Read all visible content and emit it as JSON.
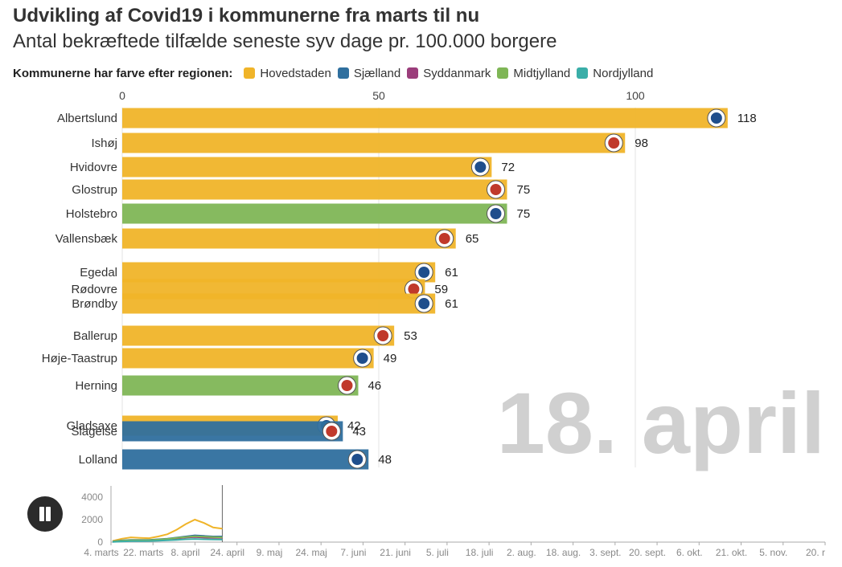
{
  "header": {
    "title": "Udvikling af Covid19 i kommunerne fra marts til nu",
    "subtitle": "Antal bekræftede tilfælde seneste syv dage pr. 100.000 borgere"
  },
  "legend": {
    "title": "Kommunerne har farve efter regionen:",
    "items": [
      {
        "label": "Hovedstaden",
        "color": "#f0b429"
      },
      {
        "label": "Sjælland",
        "color": "#2f6f9e"
      },
      {
        "label": "Syddanmark",
        "color": "#9b3d7b"
      },
      {
        "label": "Midtjylland",
        "color": "#7fb656"
      },
      {
        "label": "Nordjylland",
        "color": "#3aaea8"
      }
    ]
  },
  "controls": {
    "pause_icon": "pause-icon"
  },
  "chart_data": [
    {
      "type": "bar",
      "orientation": "horizontal",
      "date_label": "18. april",
      "xlim": [
        0,
        120
      ],
      "xticks": [
        "0",
        "50",
        "100"
      ],
      "grid": true,
      "categories": [
        "Albertslund",
        "Ishøj",
        "Hvidovre",
        "Glostrup",
        "Holstebro",
        "Vallensbæk",
        "Egedal",
        "Rødovre",
        "Brøndby",
        "Ballerup",
        "Høje-Taastrup",
        "Herning",
        "Gladsaxe",
        "Slagelse",
        "Lolland"
      ],
      "values": [
        118,
        98,
        72,
        75,
        75,
        65,
        61,
        59,
        61,
        53,
        49,
        46,
        42,
        43,
        48
      ],
      "regions": [
        "Hovedstaden",
        "Hovedstaden",
        "Hovedstaden",
        "Hovedstaden",
        "Midtjylland",
        "Hovedstaden",
        "Hovedstaden",
        "Hovedstaden",
        "Hovedstaden",
        "Hovedstaden",
        "Hovedstaden",
        "Midtjylland",
        "Hovedstaden",
        "Sjælland",
        "Sjælland"
      ],
      "icons": [
        "albertslund-crest-icon",
        "ishoj-crest-icon",
        "hvidovre-crest-icon",
        "glostrup-crest-icon",
        "holstebro-crest-icon",
        "vallensbaek-crest-icon",
        "egedal-crest-icon",
        "rodovre-crest-icon",
        "brondby-crest-icon",
        "ballerup-crest-icon",
        "hoje-taastrup-crest-icon",
        "herning-crest-icon",
        "gladsaxe-crest-icon",
        "slagelse-crest-icon",
        "lolland-crest-icon"
      ]
    },
    {
      "type": "line",
      "ylim": [
        0,
        5000
      ],
      "yticks": [
        "0",
        "2000",
        "4000"
      ],
      "xticks": [
        "4. marts",
        "22. marts",
        "8. april",
        "24. april",
        "9. maj",
        "24. maj",
        "7. juni",
        "21. juni",
        "5. juli",
        "18. juli",
        "2. aug.",
        "18. aug.",
        "3. sept.",
        "20. sept.",
        "6. okt.",
        "21. okt.",
        "5. nov.",
        "20. r"
      ],
      "x_start_date": "4. marts",
      "x_end_date": "18. april",
      "series": [
        {
          "region": "Hovedstaden",
          "values": [
            100,
            300,
            420,
            380,
            350,
            500,
            700,
            1100,
            1600,
            2000,
            1700,
            1300,
            1200
          ]
        },
        {
          "region": "Sjælland",
          "values": [
            50,
            150,
            200,
            200,
            200,
            250,
            300,
            400,
            500,
            600,
            550,
            500,
            500
          ]
        },
        {
          "region": "Syddanmark",
          "values": [
            30,
            100,
            150,
            150,
            150,
            200,
            250,
            320,
            400,
            450,
            400,
            380,
            380
          ]
        },
        {
          "region": "Midtjylland",
          "values": [
            40,
            120,
            170,
            170,
            170,
            220,
            280,
            380,
            450,
            520,
            480,
            450,
            420
          ]
        },
        {
          "region": "Nordjylland",
          "values": [
            20,
            60,
            90,
            90,
            100,
            130,
            160,
            200,
            250,
            280,
            250,
            230,
            220
          ]
        }
      ]
    }
  ]
}
